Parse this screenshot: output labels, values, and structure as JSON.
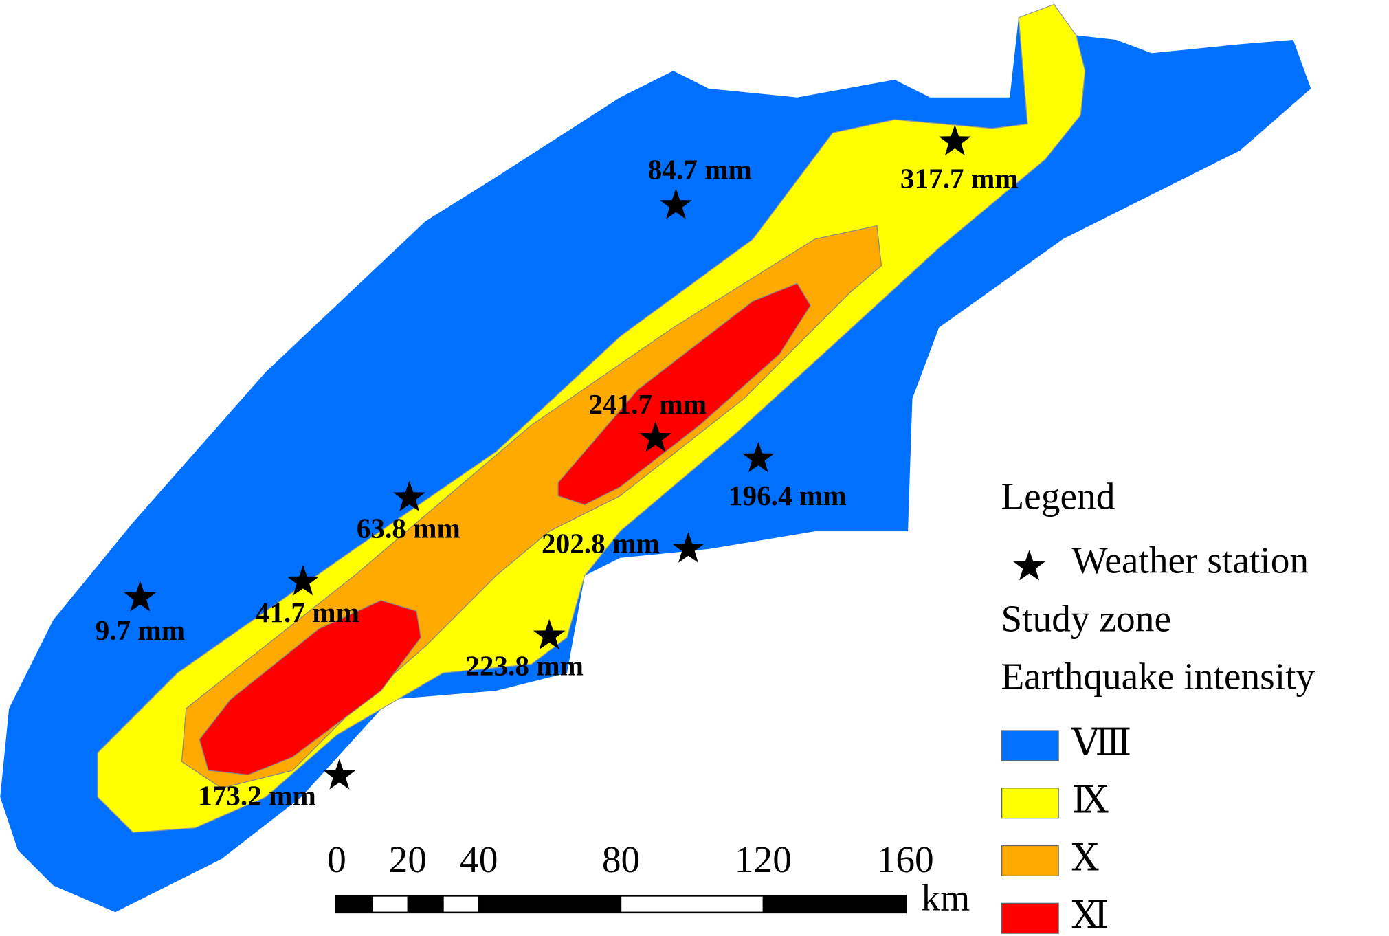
{
  "stations": [
    "84.7 mm",
    "317.7 mm",
    "241.7 mm",
    "196.4 mm",
    "63.8 mm",
    "202.8 mm",
    "9.7 mm",
    "41.7 mm",
    "223.8 mm",
    "173.2 mm"
  ],
  "legend": {
    "title": "Legend",
    "station": "Weather station",
    "study_zone": "Study zone",
    "intensity_title": "Earthquake intensity",
    "intensity": [
      {
        "label": "Ⅷ",
        "color": "#0070ff"
      },
      {
        "label": "Ⅸ",
        "color": "#ffff00"
      },
      {
        "label": "Ⅹ",
        "color": "#ffaa00"
      },
      {
        "label": "Ⅺ",
        "color": "#ff0000"
      }
    ]
  },
  "scale_bar": {
    "ticks": [
      0,
      20,
      40,
      80,
      120,
      160
    ],
    "unit": "km"
  }
}
